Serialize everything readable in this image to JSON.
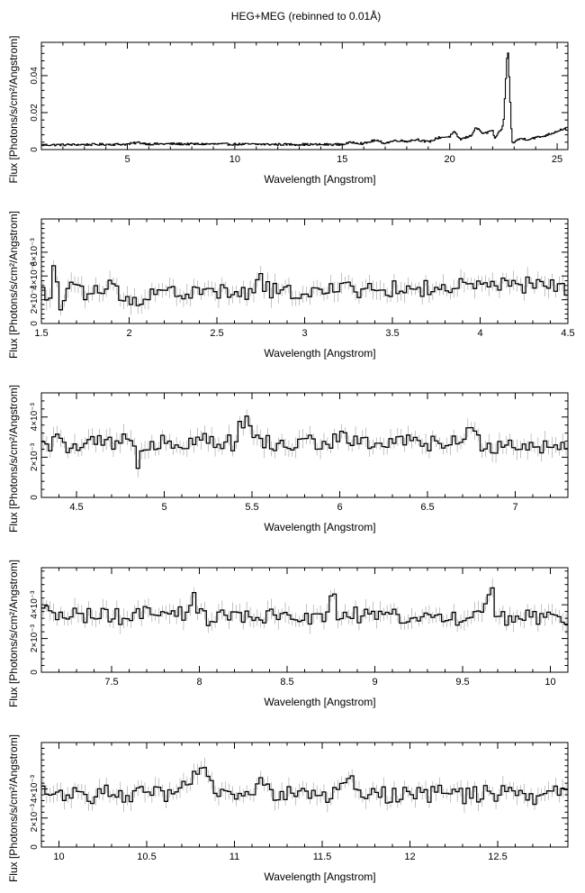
{
  "title": "HEG+MEG (rebinned to 0.01Å)",
  "chart_data": [
    {
      "type": "line",
      "xlabel": "Wavelength [Angstrom]",
      "ylabel": "Flux [Photons/s/cm²/Angstrom]",
      "xlim": [
        1.0,
        25.5
      ],
      "ylim": [
        0,
        0.058
      ],
      "xticks": [
        5,
        10,
        15,
        20,
        25
      ],
      "xtick_labels": [
        "5",
        "10",
        "15",
        "20",
        "25"
      ],
      "yticks": [
        0,
        0.02,
        0.04
      ],
      "ytick_labels": [
        "0",
        "0.02",
        "0.04"
      ],
      "series": [
        {
          "x": [
            1,
            2,
            3,
            4,
            5,
            5.5,
            6,
            7,
            8,
            9,
            10,
            11,
            12,
            13,
            14,
            15,
            15.5,
            16,
            16.5,
            17,
            17.5,
            18,
            18.5,
            19,
            19.5,
            20,
            20.2,
            20.5,
            21,
            21.2,
            21.6,
            22,
            22.1,
            22.5,
            22.7,
            22.8,
            22.9,
            23.3,
            23.6,
            24,
            24.3,
            24.8,
            25.2
          ],
          "y": [
            0.0025,
            0.0026,
            0.0027,
            0.0028,
            0.0029,
            0.0038,
            0.003,
            0.0031,
            0.003,
            0.003,
            0.0029,
            0.0029,
            0.0028,
            0.0028,
            0.0027,
            0.0028,
            0.004,
            0.0032,
            0.005,
            0.0035,
            0.005,
            0.0045,
            0.0055,
            0.004,
            0.0065,
            0.007,
            0.0095,
            0.0055,
            0.0075,
            0.012,
            0.0085,
            0.0105,
            0.0055,
            0.013,
            0.057,
            0.031,
            0.0035,
            0.006,
            0.0055,
            0.0065,
            0.007,
            0.009,
            0.011
          ]
        }
      ]
    },
    {
      "type": "line",
      "xlabel": "Wavelength [Angstrom]",
      "ylabel": "Flux [Photons/s/cm²/Angstrom]",
      "xlim": [
        1.5,
        4.5
      ],
      "ylim": [
        0,
        0.0088
      ],
      "xticks": [
        1.5,
        2,
        2.5,
        3,
        3.5,
        4,
        4.5
      ],
      "xtick_labels": [
        "1.5",
        "2",
        "2.5",
        "3",
        "3.5",
        "4",
        "4.5"
      ],
      "yticks": [
        0,
        0.002,
        0.004,
        0.006
      ],
      "ytick_labels": [
        "0",
        "2×10⁻³",
        "4×10⁻³",
        "6×10⁻³"
      ],
      "series": [
        {
          "x": [
            1.5,
            1.55,
            1.58,
            1.6,
            1.62,
            1.65,
            1.7,
            1.75,
            1.8,
            1.85,
            1.9,
            1.95,
            2.0,
            2.1,
            2.2,
            2.3,
            2.4,
            2.5,
            2.6,
            2.7,
            2.75,
            2.8,
            2.9,
            3.0,
            3.1,
            3.2,
            3.27,
            3.3,
            3.4,
            3.5,
            3.6,
            3.7,
            3.8,
            3.9,
            4.0,
            4.1,
            4.2,
            4.3,
            4.4,
            4.5
          ],
          "y": [
            0.0028,
            0.0022,
            0.0062,
            0.0008,
            0.0012,
            0.0025,
            0.0035,
            0.0022,
            0.003,
            0.0026,
            0.0032,
            0.0024,
            0.0015,
            0.0026,
            0.0028,
            0.0025,
            0.0026,
            0.0027,
            0.0025,
            0.0024,
            0.0038,
            0.0027,
            0.0026,
            0.0028,
            0.0026,
            0.0027,
            0.0038,
            0.0028,
            0.0027,
            0.0029,
            0.0028,
            0.003,
            0.0029,
            0.0031,
            0.003,
            0.0032,
            0.0031,
            0.0033,
            0.0031,
            0.003
          ]
        }
      ]
    },
    {
      "type": "line",
      "xlabel": "Wavelength [Angstrom]",
      "ylabel": "Flux [Photons/s/cm²/Angstrom]",
      "xlim": [
        4.3,
        7.3
      ],
      "ylim": [
        0,
        0.0052
      ],
      "xticks": [
        4.5,
        5,
        5.5,
        6,
        6.5,
        7
      ],
      "xtick_labels": [
        "4.5",
        "5",
        "5.5",
        "6",
        "6.5",
        "7"
      ],
      "yticks": [
        0,
        0.002,
        0.004
      ],
      "ytick_labels": [
        "0",
        "2×10⁻³",
        "4×10⁻³"
      ],
      "series": [
        {
          "x": [
            4.3,
            4.4,
            4.5,
            4.6,
            4.7,
            4.8,
            4.85,
            4.9,
            5.0,
            5.1,
            5.2,
            5.3,
            5.4,
            5.47,
            5.5,
            5.6,
            5.7,
            5.8,
            5.9,
            6.0,
            6.1,
            6.2,
            6.3,
            6.4,
            6.5,
            6.6,
            6.7,
            6.75,
            6.8,
            6.9,
            7.0,
            7.1,
            7.2,
            7.3
          ],
          "y": [
            0.0025,
            0.0028,
            0.0024,
            0.0027,
            0.0026,
            0.0028,
            0.0018,
            0.0027,
            0.0029,
            0.0027,
            0.003,
            0.0028,
            0.0027,
            0.0043,
            0.0029,
            0.0027,
            0.0025,
            0.0028,
            0.0027,
            0.0029,
            0.0028,
            0.0027,
            0.0026,
            0.0028,
            0.0027,
            0.0026,
            0.0028,
            0.0033,
            0.0027,
            0.0026,
            0.0027,
            0.0025,
            0.0026,
            0.0027
          ]
        }
      ]
    },
    {
      "type": "line",
      "xlabel": "Wavelength [Angstrom]",
      "ylabel": "Flux [Photons/s/cm²/Angstrom]",
      "xlim": [
        7.1,
        10.1
      ],
      "ylim": [
        0,
        0.0062
      ],
      "xticks": [
        7.5,
        8,
        8.5,
        9,
        9.5,
        10
      ],
      "xtick_labels": [
        "7.5",
        "8",
        "8.5",
        "9",
        "9.5",
        "10"
      ],
      "yticks": [
        0,
        0.002,
        0.004
      ],
      "ytick_labels": [
        "0",
        "2×10⁻³",
        "4×10⁻³"
      ],
      "series": [
        {
          "x": [
            7.1,
            7.2,
            7.3,
            7.4,
            7.5,
            7.6,
            7.7,
            7.8,
            7.9,
            7.97,
            8.0,
            8.1,
            8.2,
            8.3,
            8.4,
            8.5,
            8.6,
            8.7,
            8.76,
            8.8,
            8.9,
            9.0,
            9.1,
            9.2,
            9.3,
            9.4,
            9.5,
            9.6,
            9.67,
            9.7,
            9.8,
            9.9,
            10.0,
            10.1
          ],
          "y": [
            0.0035,
            0.0033,
            0.0036,
            0.0032,
            0.0034,
            0.0031,
            0.0035,
            0.0033,
            0.0034,
            0.0043,
            0.0033,
            0.0032,
            0.0034,
            0.0031,
            0.0033,
            0.0032,
            0.0034,
            0.0031,
            0.0046,
            0.0032,
            0.0034,
            0.0031,
            0.0035,
            0.0032,
            0.0034,
            0.0031,
            0.0033,
            0.0032,
            0.005,
            0.0031,
            0.0033,
            0.0032,
            0.0034,
            0.0031
          ]
        }
      ]
    },
    {
      "type": "line",
      "xlabel": "Wavelength [Angstrom]",
      "ylabel": "Flux [Photons/s/cm²/Angstrom]",
      "xlim": [
        9.9,
        12.9
      ],
      "ylim": [
        0,
        0.0072
      ],
      "xticks": [
        10,
        10.5,
        11,
        11.5,
        12,
        12.5
      ],
      "xtick_labels": [
        "10",
        "10.5",
        "11",
        "11.5",
        "12",
        "12.5"
      ],
      "yticks": [
        0,
        0.002,
        0.004
      ],
      "ytick_labels": [
        "0",
        "2×10⁻³",
        "4×10⁻³"
      ],
      "series": [
        {
          "x": [
            9.9,
            10.0,
            10.1,
            10.2,
            10.3,
            10.4,
            10.5,
            10.6,
            10.7,
            10.8,
            10.9,
            11.0,
            11.1,
            11.15,
            11.2,
            11.3,
            11.4,
            11.5,
            11.6,
            11.68,
            11.7,
            11.8,
            11.9,
            12.0,
            12.1,
            12.2,
            12.3,
            12.4,
            12.5,
            12.6,
            12.7,
            12.8,
            12.9
          ],
          "y": [
            0.0038,
            0.0036,
            0.0039,
            0.0035,
            0.0038,
            0.0036,
            0.0037,
            0.0035,
            0.0038,
            0.0055,
            0.0036,
            0.0038,
            0.0035,
            0.0052,
            0.0037,
            0.0036,
            0.0038,
            0.0035,
            0.0037,
            0.0051,
            0.0036,
            0.0038,
            0.0035,
            0.0037,
            0.0036,
            0.0038,
            0.0035,
            0.0037,
            0.0036,
            0.0038,
            0.0035,
            0.0037,
            0.0036
          ]
        }
      ]
    }
  ]
}
